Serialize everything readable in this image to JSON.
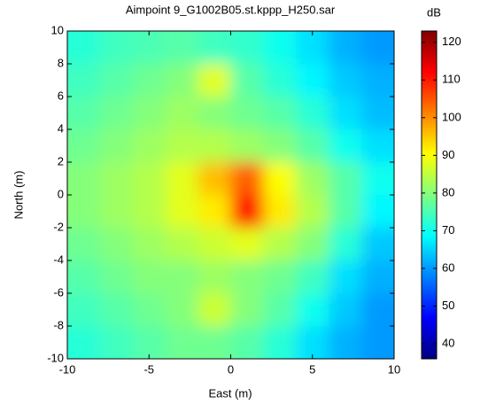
{
  "chart_data": {
    "type": "heatmap",
    "title": "Aimpoint 9_G1002B05.st.kppp_H250.sar",
    "xlabel": "East (m)",
    "ylabel": "North (m)",
    "x": [
      -9,
      -7,
      -5,
      -3,
      -1,
      1,
      3,
      5,
      7,
      9
    ],
    "y": [
      9,
      7,
      5,
      3,
      1,
      -1,
      -3,
      -5,
      -7,
      -9
    ],
    "values": [
      [
        72,
        74,
        75,
        76,
        74,
        73,
        70,
        66,
        62,
        60
      ],
      [
        74,
        76,
        78,
        80,
        88,
        76,
        72,
        68,
        64,
        62
      ],
      [
        76,
        78,
        80,
        82,
        80,
        78,
        76,
        72,
        66,
        63
      ],
      [
        78,
        80,
        82,
        84,
        84,
        82,
        80,
        76,
        70,
        66
      ],
      [
        80,
        82,
        84,
        88,
        96,
        104,
        90,
        82,
        76,
        70
      ],
      [
        80,
        82,
        84,
        88,
        92,
        112,
        92,
        84,
        76,
        68
      ],
      [
        78,
        80,
        82,
        84,
        86,
        88,
        84,
        80,
        72,
        64
      ],
      [
        76,
        78,
        80,
        80,
        82,
        80,
        78,
        74,
        66,
        62
      ],
      [
        74,
        76,
        78,
        80,
        86,
        80,
        76,
        70,
        64,
        60
      ],
      [
        72,
        74,
        76,
        78,
        78,
        76,
        72,
        66,
        62,
        60
      ]
    ],
    "xlim": [
      -10,
      10
    ],
    "ylim": [
      -10,
      10
    ],
    "xticks": [
      -10,
      -5,
      0,
      5,
      10
    ],
    "yticks": [
      -10,
      -8,
      -6,
      -4,
      -2,
      0,
      2,
      4,
      6,
      8,
      10
    ],
    "colormap": "jet",
    "colorbar": {
      "label": "dB",
      "clim": [
        36,
        123
      ],
      "ticks": [
        40,
        50,
        60,
        70,
        80,
        90,
        100,
        110,
        120
      ]
    }
  }
}
